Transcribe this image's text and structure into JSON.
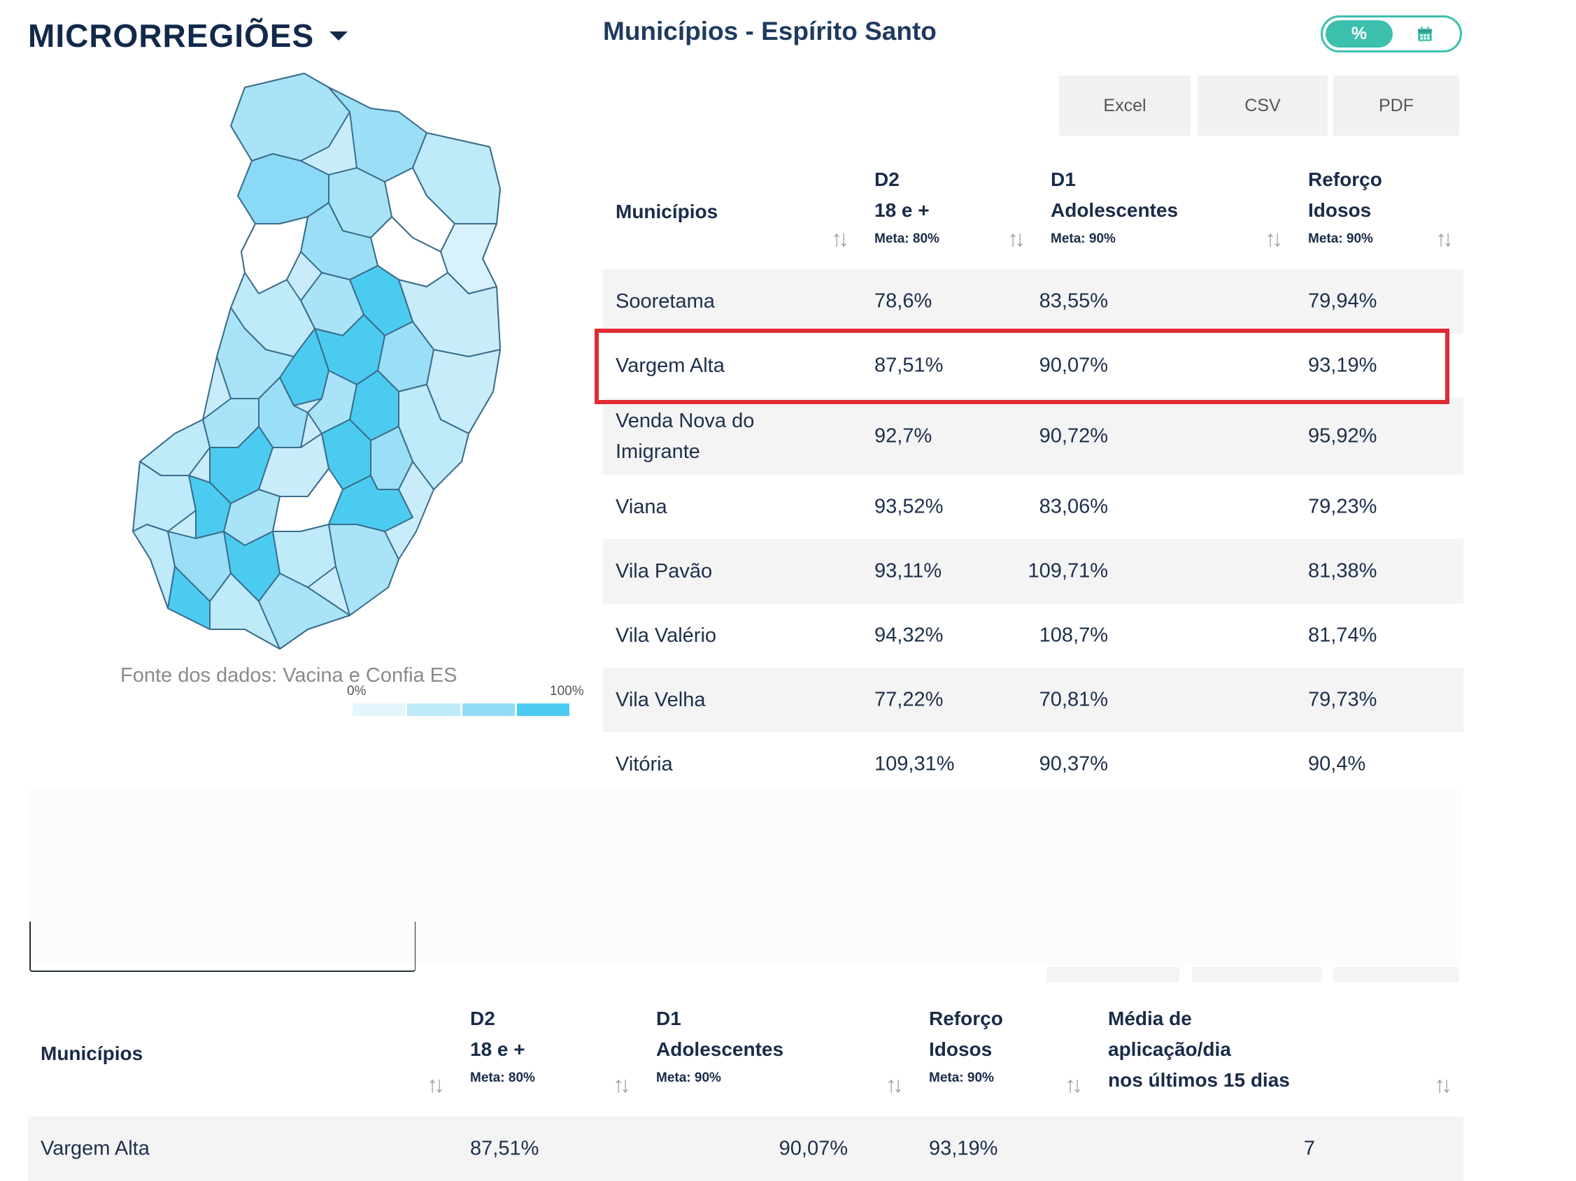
{
  "header": {
    "region_label": "MICRORREGIÕES",
    "title": "Municípios - Espírito Santo",
    "toggle": {
      "active_label": "%",
      "inactive_icon": "calendar-icon"
    }
  },
  "export": {
    "excel": "Excel",
    "csv": "CSV",
    "pdf": "PDF"
  },
  "map": {
    "source": "Fonte dos dados: Vacina e Confia ES",
    "legend_min": "0%",
    "legend_max": "100%",
    "legend_colors": [
      "#e3f6fd",
      "#bfeafa",
      "#92dcf6",
      "#4ccbf1"
    ]
  },
  "table": {
    "headers": {
      "municipios": "Municípios",
      "d2_line1": "D2",
      "d2_line2": "18 e +",
      "d2_meta": "Meta: 80%",
      "d1_line1": "D1",
      "d1_line2": "Adolescentes",
      "d1_meta": "Meta: 90%",
      "ref_line1": "Reforço",
      "ref_line2": "Idosos",
      "ref_meta": "Meta: 90%"
    },
    "rows": [
      {
        "name": "Sooretama",
        "d2": "78,6%",
        "d1": "83,55%",
        "ref": "79,94%"
      },
      {
        "name": "Vargem Alta",
        "d2": "87,51%",
        "d1": "90,07%",
        "ref": "93,19%"
      },
      {
        "name_l1": "Venda Nova do",
        "name_l2": "Imigrante",
        "d2": "92,7%",
        "d1": "90,72%",
        "ref": "95,92%"
      },
      {
        "name": "Viana",
        "d2": "93,52%",
        "d1": "83,06%",
        "ref": "79,23%"
      },
      {
        "name": "Vila Pavão",
        "d2": "93,11%",
        "d1": "109,71%",
        "ref": "81,38%"
      },
      {
        "name": "Vila Valério",
        "d2": "94,32%",
        "d1": "108,7%",
        "ref": "81,74%"
      },
      {
        "name": "Vila Velha",
        "d2": "77,22%",
        "d1": "70,81%",
        "ref": "79,73%"
      },
      {
        "name": "Vitória",
        "d2": "109,31%",
        "d1": "90,37%",
        "ref": "90,4%"
      }
    ]
  },
  "table2": {
    "headers": {
      "municipios": "Municípios",
      "d2_line1": "D2",
      "d2_line2": "18 e +",
      "d2_meta": "Meta: 80%",
      "d1_line1": "D1",
      "d1_line2": "Adolescentes",
      "d1_meta": "Meta: 90%",
      "ref_line1": "Reforço",
      "ref_line2": "Idosos",
      "ref_meta": "Meta: 90%",
      "avg_line1": "Média de",
      "avg_line2": "aplicação/dia",
      "avg_line3": "nos últimos 15 dias"
    },
    "rows": [
      {
        "name": "Vargem Alta",
        "d2": "87,51%",
        "d1": "90,07%",
        "ref": "93,19%",
        "avg": "7"
      }
    ]
  },
  "colors": {
    "accent": "#3dbfad",
    "highlight": "#e02b35",
    "map_border": "#3a6d8c"
  }
}
